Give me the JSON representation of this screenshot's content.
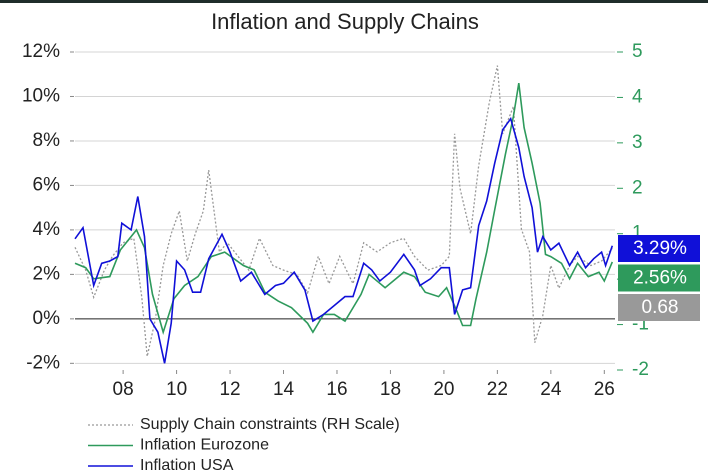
{
  "chart_data": {
    "type": "line",
    "title": "Inflation and Supply Chains",
    "xlim": [
      2006.2,
      2026.4
    ],
    "xticks": [
      {
        "value": 2008,
        "label": "08"
      },
      {
        "value": 2010,
        "label": "10"
      },
      {
        "value": 2012,
        "label": "12"
      },
      {
        "value": 2014,
        "label": "14"
      },
      {
        "value": 2016,
        "label": "16"
      },
      {
        "value": 2018,
        "label": "18"
      },
      {
        "value": 2020,
        "label": "20"
      },
      {
        "value": 2022,
        "label": "22"
      },
      {
        "value": 2024,
        "label": "24"
      },
      {
        "value": 2026,
        "label": "26"
      }
    ],
    "ylim": [
      -2.3,
      12
    ],
    "yticks": [
      {
        "value": -2,
        "label": "-2%"
      },
      {
        "value": 0,
        "label": "0%"
      },
      {
        "value": 2,
        "label": "2%"
      },
      {
        "value": 4,
        "label": "4%"
      },
      {
        "value": 6,
        "label": "6%"
      },
      {
        "value": 8,
        "label": "8%"
      },
      {
        "value": 10,
        "label": "10%"
      },
      {
        "value": 12,
        "label": "12%"
      }
    ],
    "y2lim": [
      -2,
      5
    ],
    "y2ticks": [
      -2,
      -1,
      0,
      1,
      2,
      3,
      4,
      5
    ],
    "grid": true,
    "series": [
      {
        "name": "Supply Chain constraints (RH Scale)",
        "color": "#999999",
        "dash": true,
        "axis": "y2",
        "x": [
          2006.2,
          2006.6,
          2006.9,
          2007.3,
          2007.6,
          2008.0,
          2008.4,
          2008.7,
          2008.9,
          2009.2,
          2009.5,
          2009.8,
          2010.1,
          2010.4,
          2010.7,
          2011.0,
          2011.2,
          2011.6,
          2011.9,
          2012.3,
          2012.7,
          2013.1,
          2013.6,
          2014.0,
          2014.5,
          2014.9,
          2015.3,
          2015.7,
          2016.1,
          2016.6,
          2017.0,
          2017.5,
          2018.0,
          2018.5,
          2018.9,
          2019.4,
          2019.9,
          2020.2,
          2020.4,
          2020.6,
          2021.0,
          2021.3,
          2021.7,
          2022.0,
          2022.2,
          2022.6,
          2022.9,
          2023.2,
          2023.4,
          2023.7,
          2024.0,
          2024.3,
          2024.7,
          2025.0,
          2025.5,
          2025.9,
          2026.3
        ],
        "values": [
          0.7,
          0.2,
          -0.4,
          0.2,
          0.5,
          0.8,
          0.9,
          -0.4,
          -1.7,
          -0.9,
          0.3,
          1.0,
          1.5,
          0.4,
          1.0,
          1.5,
          2.4,
          0.6,
          0.8,
          0.5,
          0.2,
          0.9,
          0.3,
          0.2,
          0.1,
          -0.3,
          0.5,
          -0.1,
          0.5,
          -0.1,
          0.8,
          0.6,
          0.8,
          0.9,
          0.5,
          0.2,
          0.3,
          0.5,
          3.2,
          2.0,
          1.0,
          2.5,
          3.9,
          4.7,
          3.2,
          3.8,
          1.1,
          0.6,
          -1.4,
          -0.8,
          0.3,
          -0.2,
          0.3,
          0.5,
          0.3,
          0.4,
          0.68
        ],
        "value_labels": [
          null,
          null,
          null,
          null,
          null,
          null,
          null,
          null,
          null,
          null,
          null,
          null,
          null,
          null,
          null,
          null,
          null,
          null,
          null,
          null,
          null,
          null,
          null,
          null,
          null,
          null,
          null,
          null,
          null,
          null,
          null,
          null,
          null,
          null,
          null,
          null,
          null,
          null,
          null,
          null,
          null,
          null,
          null,
          null,
          null,
          null,
          null,
          null,
          null,
          null,
          null,
          null,
          null,
          null,
          null,
          null,
          "0.68"
        ]
      },
      {
        "name": "Inflation Eurozone",
        "color": "#2e9a5c",
        "x": [
          2006.2,
          2006.6,
          2006.9,
          2007.5,
          2007.9,
          2008.5,
          2008.8,
          2009.1,
          2009.5,
          2009.9,
          2010.3,
          2010.8,
          2011.3,
          2011.8,
          2012.5,
          2012.9,
          2013.3,
          2013.8,
          2014.3,
          2014.9,
          2015.1,
          2015.5,
          2015.9,
          2016.3,
          2016.9,
          2017.2,
          2017.8,
          2018.5,
          2018.9,
          2019.3,
          2019.8,
          2020.1,
          2020.5,
          2020.7,
          2021.0,
          2021.2,
          2021.6,
          2021.9,
          2022.3,
          2022.6,
          2022.8,
          2023.0,
          2023.3,
          2023.6,
          2023.8,
          2024.0,
          2024.4,
          2024.7,
          2025.0,
          2025.4,
          2025.8,
          2026.0,
          2026.3
        ],
        "values": [
          2.5,
          2.3,
          1.8,
          1.9,
          3.1,
          4.0,
          3.2,
          1.1,
          -0.6,
          0.9,
          1.5,
          1.9,
          2.8,
          3.0,
          2.4,
          2.2,
          1.2,
          0.8,
          0.5,
          -0.2,
          -0.6,
          0.2,
          0.2,
          -0.1,
          1.1,
          2.0,
          1.4,
          2.1,
          1.9,
          1.2,
          1.0,
          1.4,
          0.3,
          -0.3,
          -0.3,
          0.9,
          3.0,
          4.9,
          7.4,
          9.1,
          10.6,
          8.6,
          7.0,
          5.2,
          2.9,
          2.8,
          2.5,
          1.8,
          2.5,
          1.9,
          2.1,
          1.7,
          2.56
        ],
        "value_labels": [
          null,
          null,
          null,
          null,
          null,
          null,
          null,
          null,
          null,
          null,
          null,
          null,
          null,
          null,
          null,
          null,
          null,
          null,
          null,
          null,
          null,
          null,
          null,
          null,
          null,
          null,
          null,
          null,
          null,
          null,
          null,
          null,
          null,
          null,
          null,
          null,
          null,
          null,
          null,
          null,
          null,
          null,
          null,
          null,
          null,
          null,
          null,
          null,
          null,
          null,
          null,
          null,
          "2.56%"
        ]
      },
      {
        "name": "Inflation USA",
        "color": "#1010d8",
        "x": [
          2006.2,
          2006.5,
          2006.9,
          2007.2,
          2007.5,
          2007.8,
          2007.95,
          2008.3,
          2008.55,
          2008.8,
          2009.0,
          2009.3,
          2009.55,
          2009.8,
          2010.0,
          2010.3,
          2010.6,
          2010.9,
          2011.2,
          2011.7,
          2012.0,
          2012.4,
          2012.8,
          2013.3,
          2013.7,
          2014.0,
          2014.4,
          2014.8,
          2015.1,
          2015.5,
          2015.9,
          2016.3,
          2016.6,
          2017.0,
          2017.3,
          2017.6,
          2018.0,
          2018.5,
          2018.9,
          2019.1,
          2019.5,
          2019.9,
          2020.2,
          2020.4,
          2020.7,
          2021.0,
          2021.3,
          2021.6,
          2021.9,
          2022.2,
          2022.5,
          2022.8,
          2023.0,
          2023.3,
          2023.5,
          2023.7,
          2024.0,
          2024.3,
          2024.7,
          2025.0,
          2025.3,
          2025.6,
          2025.9,
          2026.05,
          2026.3
        ],
        "values": [
          3.6,
          4.1,
          1.5,
          2.5,
          2.6,
          2.8,
          4.3,
          4.0,
          5.5,
          3.7,
          0.0,
          -0.6,
          -2.0,
          -0.2,
          2.6,
          2.2,
          1.2,
          1.2,
          2.7,
          3.8,
          3.0,
          1.7,
          2.1,
          1.1,
          1.5,
          1.6,
          2.1,
          1.3,
          -0.1,
          0.2,
          0.6,
          1.0,
          1.0,
          2.5,
          2.2,
          1.7,
          2.1,
          2.9,
          2.2,
          1.5,
          1.8,
          2.3,
          2.3,
          0.2,
          1.3,
          1.4,
          4.2,
          5.3,
          7.0,
          8.5,
          9.0,
          7.7,
          6.4,
          5.0,
          3.0,
          3.7,
          3.1,
          3.4,
          2.4,
          3.0,
          2.3,
          2.7,
          3.0,
          2.4,
          3.29
        ],
        "value_labels": [
          null,
          null,
          null,
          null,
          null,
          null,
          null,
          null,
          null,
          null,
          null,
          null,
          null,
          null,
          null,
          null,
          null,
          null,
          null,
          null,
          null,
          null,
          null,
          null,
          null,
          null,
          null,
          null,
          null,
          null,
          null,
          null,
          null,
          null,
          null,
          null,
          null,
          null,
          null,
          null,
          null,
          null,
          null,
          null,
          null,
          null,
          null,
          null,
          null,
          null,
          null,
          null,
          null,
          null,
          null,
          null,
          null,
          null,
          null,
          null,
          null,
          null,
          null,
          null,
          "3.29%"
        ]
      }
    ]
  }
}
